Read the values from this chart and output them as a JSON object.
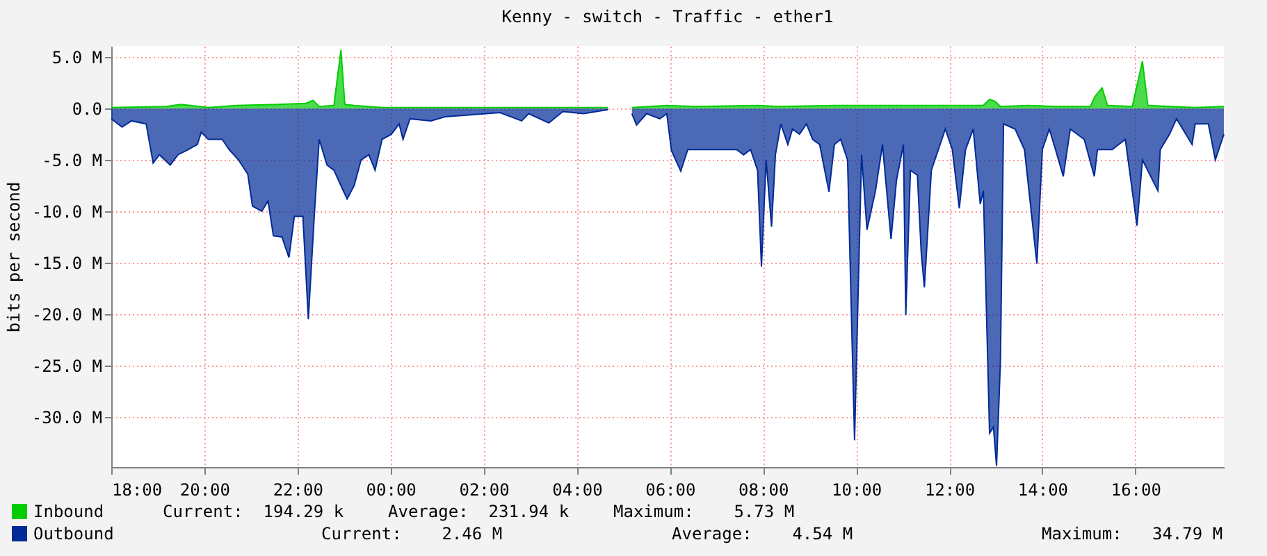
{
  "chart_data": {
    "type": "area",
    "title": "Kenny - switch - Traffic - ether1",
    "ylabel": "bits per second",
    "xlim": [
      "--01-01T18:00",
      "--01-02T17:54"
    ],
    "ylim": [
      -34.9,
      6.1
    ],
    "xticks": [
      {
        "value": "--01-01T18:00",
        "label": "18:00"
      },
      {
        "value": "--01-01T20:00",
        "label": "20:00"
      },
      {
        "value": "--01-01T22:00",
        "label": "22:00"
      },
      {
        "value": "--01-02T00:00",
        "label": "00:00"
      },
      {
        "value": "--01-02T02:00",
        "label": "02:00"
      },
      {
        "value": "--01-02T04:00",
        "label": "04:00"
      },
      {
        "value": "--01-02T06:00",
        "label": "06:00"
      },
      {
        "value": "--01-02T08:00",
        "label": "08:00"
      },
      {
        "value": "--01-02T10:00",
        "label": "10:00"
      },
      {
        "value": "--01-02T12:00",
        "label": "12:00"
      },
      {
        "value": "--01-02T14:00",
        "label": "14:00"
      },
      {
        "value": "--01-02T16:00",
        "label": "16:00"
      }
    ],
    "yticks": [
      {
        "value": 5,
        "label": "5.0 M"
      },
      {
        "value": 0,
        "label": "0.0"
      },
      {
        "value": -5,
        "label": "-5.0 M"
      },
      {
        "value": -10,
        "label": "-10.0 M"
      },
      {
        "value": -15,
        "label": "-15.0 M"
      },
      {
        "value": -20,
        "label": "-20.0 M"
      },
      {
        "value": -25,
        "label": "-25.0 M"
      },
      {
        "value": -30,
        "label": "-30.0 M"
      }
    ],
    "grid": true,
    "legend": "bottom left",
    "annotations": [
      "Current:  194.29 k",
      "Average:  231.94 k",
      "Maximum:    5.73 M",
      "Current:    2.46 M",
      "Average:    4.54 M",
      "Maximum:   34.79 M"
    ],
    "series": [
      {
        "name": "Inbound",
        "color": "#00cc00",
        "x": [
          "--01-01T18:00",
          "--01-01T19:11",
          "--01-01T19:30",
          "--01-01T20:05",
          "--01-01T20:41",
          "--01-01T21:35",
          "--01-01T22:11",
          "--01-01T22:20",
          "--01-01T22:28",
          "--01-01T22:47",
          "--01-01T22:56",
          "--01-01T23:01",
          "--01-01T23:13",
          "--01-01T23:49",
          "--01-02T00:34",
          "--01-02T02:58",
          "--01-02T04:09",
          "--01-02T04:40",
          "--01-02T04:45",
          "--01-02T05:11",
          "--01-02T05:56",
          "--01-02T06:32",
          "--01-02T07:53",
          "--01-02T08:20",
          "--01-02T09:32",
          "--01-02T11:01",
          "--01-02T12:13",
          "--01-02T12:44",
          "--01-02T12:52",
          "--01-02T12:59",
          "--01-02T13:06",
          "--01-02T13:42",
          "--01-02T14:17",
          "--01-02T15:02",
          "--01-02T15:08",
          "--01-02T15:17",
          "--01-02T15:24",
          "--01-02T15:56",
          "--01-02T16:09",
          "--01-02T16:16",
          "--01-02T17:17",
          "--01-02T17:54"
        ],
        "values": [
          0.1,
          0.2,
          0.4,
          0.1,
          0.3,
          0.4,
          0.5,
          0.8,
          0.2,
          0.3,
          5.7,
          0.4,
          0.3,
          0.1,
          0.1,
          0.1,
          0.1,
          0.1,
          null,
          0.1,
          0.3,
          0.2,
          0.3,
          0.2,
          0.3,
          0.3,
          0.3,
          0.3,
          0.9,
          0.7,
          0.2,
          0.3,
          0.2,
          0.2,
          1.2,
          2.0,
          0.3,
          0.2,
          4.6,
          0.3,
          0.1,
          0.2
        ]
      },
      {
        "name": "Outbound",
        "color": "#002a97",
        "x": [
          "--01-01T18:00",
          "--01-01T18:14",
          "--01-01T18:26",
          "--01-01T18:45",
          "--01-01T18:54",
          "--01-01T19:02",
          "--01-01T19:16",
          "--01-01T19:26",
          "--01-01T19:39",
          "--01-01T19:51",
          "--01-01T19:56",
          "--01-01T20:05",
          "--01-01T20:23",
          "--01-01T20:32",
          "--01-01T20:44",
          "--01-01T20:56",
          "--01-01T21:02",
          "--01-01T21:14",
          "--01-01T21:22",
          "--01-01T21:29",
          "--01-01T21:40",
          "--01-01T21:49",
          "--01-01T21:56",
          "--01-01T22:07",
          "--01-01T22:14",
          "--01-01T22:22",
          "--01-01T22:28",
          "--01-01T22:38",
          "--01-01T22:47",
          "--01-01T22:56",
          "--01-01T23:04",
          "--01-01T23:13",
          "--01-01T23:22",
          "--01-01T23:32",
          "--01-01T23:40",
          "--01-01T23:49",
          "--01-02T00:01",
          "--01-02T00:11",
          "--01-02T00:16",
          "--01-02T00:25",
          "--01-02T00:52",
          "--01-02T01:10",
          "--01-02T01:46",
          "--01-02T02:21",
          "--01-02T02:49",
          "--01-02T02:58",
          "--01-02T03:24",
          "--01-02T03:42",
          "--01-02T04:09",
          "--01-02T04:40",
          "--01-02T04:45",
          "--01-02T05:11",
          "--01-02T05:17",
          "--01-02T05:30",
          "--01-02T05:47",
          "--01-02T05:56",
          "--01-02T06:02",
          "--01-02T06:14",
          "--01-02T06:23",
          "--01-02T06:41",
          "--01-02T07:08",
          "--01-02T07:26",
          "--01-02T07:35",
          "--01-02T07:44",
          "--01-02T07:53",
          "--01-02T07:58",
          "--01-02T08:04",
          "--01-02T08:11",
          "--01-02T08:16",
          "--01-02T08:23",
          "--01-02T08:32",
          "--01-02T08:38",
          "--01-02T08:47",
          "--01-02T08:56",
          "--01-02T09:04",
          "--01-02T09:13",
          "--01-02T09:25",
          "--01-02T09:32",
          "--01-02T09:40",
          "--01-02T09:49",
          "--01-02T09:58",
          "--01-02T10:07",
          "--01-02T10:14",
          "--01-02T10:25",
          "--01-02T10:34",
          "--01-02T10:45",
          "--01-02T10:52",
          "--01-02T11:01",
          "--01-02T11:04",
          "--01-02T11:10",
          "--01-02T11:19",
          "--01-02T11:24",
          "--01-02T11:28",
          "--01-02T11:37",
          "--01-02T11:46",
          "--01-02T11:55",
          "--01-02T12:04",
          "--01-02T12:13",
          "--01-02T12:21",
          "--01-02T12:31",
          "--01-02T12:40",
          "--01-02T12:44",
          "--01-02T12:52",
          "--01-02T12:57",
          "--01-02T13:01",
          "--01-02T13:06",
          "--01-02T13:10",
          "--01-02T13:25",
          "--01-02T13:37",
          "--01-02T13:53",
          "--01-02T14:00",
          "--01-02T14:09",
          "--01-02T14:17",
          "--01-02T14:27",
          "--01-02T14:36",
          "--01-02T14:54",
          "--01-02T15:07",
          "--01-02T15:11",
          "--01-02T15:30",
          "--01-02T15:47",
          "--01-02T16:02",
          "--01-02T16:09",
          "--01-02T16:29",
          "--01-02T16:32",
          "--01-02T16:44",
          "--01-02T16:53",
          "--01-02T17:13",
          "--01-02T17:17",
          "--01-02T17:34",
          "--01-02T17:43",
          "--01-02T17:54"
        ],
        "values": [
          -1.0,
          -1.8,
          -1.2,
          -1.5,
          -5.3,
          -4.5,
          -5.5,
          -4.5,
          -4.0,
          -3.5,
          -2.3,
          -3.0,
          -3.0,
          -4.0,
          -5.0,
          -6.4,
          -9.5,
          -10.0,
          -9.0,
          -12.4,
          -12.5,
          -14.5,
          -10.5,
          -10.5,
          -20.5,
          -10.0,
          -3.0,
          -5.5,
          -6.0,
          -7.5,
          -8.8,
          -7.5,
          -5.0,
          -4.5,
          -6.0,
          -3.0,
          -2.5,
          -1.5,
          -3.0,
          -1.0,
          -1.2,
          -0.8,
          -0.6,
          -0.4,
          -1.2,
          -0.5,
          -1.4,
          -0.3,
          -0.5,
          -0.1,
          null,
          -0.5,
          -1.6,
          -0.5,
          -1.0,
          -0.5,
          -4.1,
          -6.1,
          -4.0,
          -4.0,
          -4.0,
          -4.0,
          -4.5,
          -4.0,
          -6.0,
          -15.4,
          -5.0,
          -11.5,
          -4.5,
          -1.5,
          -3.5,
          -2.0,
          -2.5,
          -1.5,
          -3.0,
          -3.5,
          -8.1,
          -3.5,
          -3.0,
          -5.0,
          -32.3,
          -4.5,
          -11.8,
          -8.0,
          -3.5,
          -12.7,
          -7.0,
          -3.5,
          -20.1,
          -6.0,
          -6.5,
          -14.1,
          -17.4,
          -6.0,
          -4.0,
          -2.0,
          -4.0,
          -9.7,
          -4.0,
          -2.0,
          -9.3,
          -8.0,
          -31.6,
          -31.0,
          -34.8,
          -24.6,
          -1.5,
          -2.0,
          -4.0,
          -15.1,
          -4.0,
          -2.0,
          -4.0,
          -6.6,
          -2.0,
          -3.0,
          -6.6,
          -4.0,
          -4.0,
          -3.0,
          -11.4,
          -5.0,
          -8.0,
          -4.0,
          -2.5,
          -1.0,
          -3.5,
          -1.5,
          -1.5,
          -5.0,
          -2.5
        ]
      }
    ]
  }
}
